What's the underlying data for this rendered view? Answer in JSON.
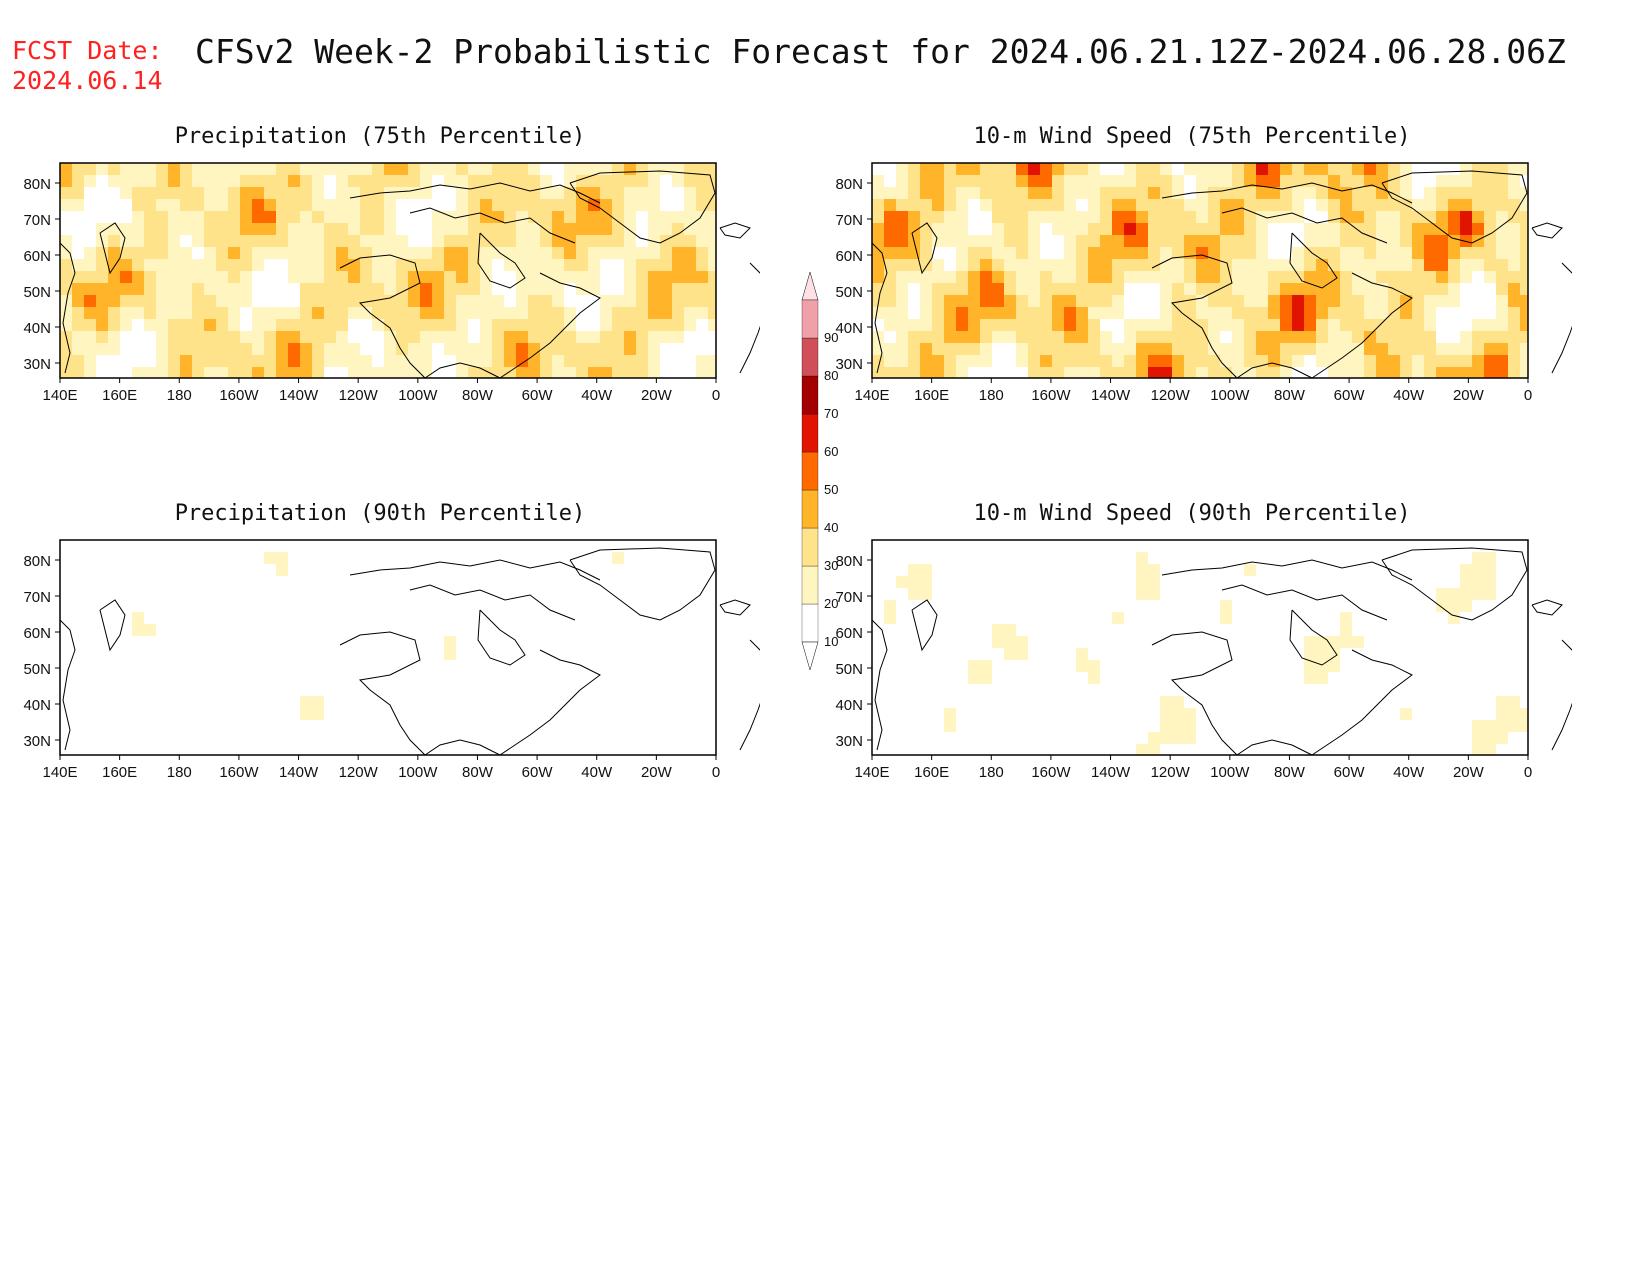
{
  "header": {
    "fcst_label": "FCST Date:",
    "fcst_date": "2024.06.14",
    "title": "CFSv2 Week-2 Probabilistic Forecast for 2024.06.21.12Z-2024.06.28.06Z"
  },
  "panels": [
    {
      "id": "precip75",
      "title": "Precipitation (75th Percentile)",
      "intensity": 0.75
    },
    {
      "id": "wind75",
      "title": "10-m Wind Speed (75th Percentile)",
      "intensity": 0.85
    },
    {
      "id": "precip90",
      "title": "Precipitation (90th Percentile)",
      "intensity": 0.25
    },
    {
      "id": "wind90",
      "title": "10-m Wind Speed (90th Percentile)",
      "intensity": 0.3
    }
  ],
  "axes": {
    "lat_labels": [
      "80N",
      "70N",
      "60N",
      "50N",
      "40N",
      "30N"
    ],
    "lon_labels": [
      "140E",
      "160E",
      "180",
      "160W",
      "140W",
      "120W",
      "100W",
      "80W",
      "60W",
      "40W",
      "20W",
      "0"
    ]
  },
  "colorbar": {
    "levels": [
      "10",
      "20",
      "30",
      "40",
      "50",
      "60",
      "70",
      "80",
      "90"
    ],
    "colors": [
      "#fff5c0",
      "#ffe38a",
      "#ffb429",
      "#ff6a00",
      "#e01400",
      "#a50000",
      "#d0505a",
      "#f0a0a8",
      "#ffe0e4"
    ]
  }
}
